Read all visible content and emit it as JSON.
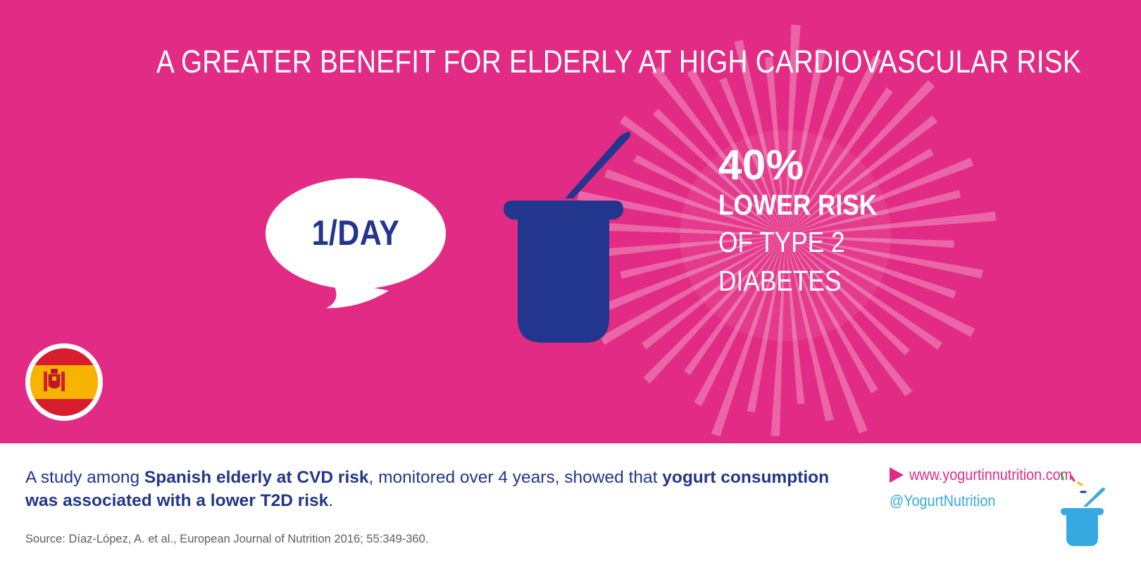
{
  "headline": "A GREATER BENEFIT FOR ELDERLY AT HIGH CARDIOVASCULAR RISK",
  "bubble": {
    "text": "1/DAY"
  },
  "risk": {
    "percent": "40%",
    "line1": "LOWER RISK",
    "line2": "OF TYPE 2",
    "line3": "DIABETES"
  },
  "study": {
    "part1": "A study among ",
    "bold1": "Spanish elderly at CVD risk",
    "part2": ", monitored over 4 years, showed that ",
    "bold2": "yogurt consumption was associated with a lower T2D risk",
    "part3": "."
  },
  "source": "Source: Díaz-López, A. et al., European Journal of Nutrition 2016; 55:349-360.",
  "contact": {
    "website": "www.yogurtinnutrition.com",
    "handle": "@YogurtNutrition"
  },
  "icons": {
    "flag": "spain-flag-icon",
    "cup": "yogurt-cup-icon",
    "bubble": "speech-bubble-icon",
    "arrow": "play-arrow-icon",
    "logo": "yogurt-logo-icon"
  },
  "colors": {
    "background": "#e22b84",
    "navy": "#21368c",
    "light_blue": "#35a9e0",
    "white": "#ffffff",
    "flag_red": "#d71d2e",
    "flag_yellow": "#f6b400"
  }
}
